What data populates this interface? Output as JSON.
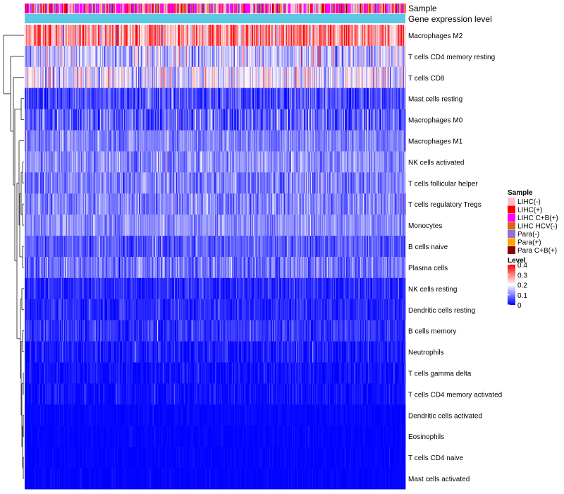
{
  "chart_data": {
    "type": "heatmap",
    "annotation_tracks": [
      "Sample",
      "Gene expression level"
    ],
    "rows": [
      "Macrophages M2",
      "T cells CD4 memory resting",
      "T cells CD8",
      "Mast cells resting",
      "Macrophages M0",
      "Macrophages M1",
      "NK cells activated",
      "T cells follicular helper",
      "T cells regulatory  Tregs",
      "Monocytes",
      "B cells naive",
      "Plasma cells",
      "NK cells resting",
      "Dendritic cells resting",
      "B cells memory",
      "Neutrophils",
      "T cells gamma delta",
      "T cells CD4 memory activated",
      "Dendritic cells activated",
      "Eosinophils",
      "T cells CD4 naive",
      "Mast cells activated"
    ],
    "row_mean_level": [
      0.28,
      0.15,
      0.18,
      0.06,
      0.07,
      0.1,
      0.11,
      0.1,
      0.1,
      0.11,
      0.07,
      0.09,
      0.03,
      0.03,
      0.04,
      0.02,
      0.01,
      0.01,
      0.005,
      0.003,
      0.002,
      0.002
    ],
    "row_variability": [
      0.12,
      0.09,
      0.1,
      0.06,
      0.08,
      0.05,
      0.06,
      0.06,
      0.06,
      0.05,
      0.05,
      0.06,
      0.04,
      0.04,
      0.04,
      0.04,
      0.03,
      0.03,
      0.01,
      0.01,
      0.01,
      0.01
    ],
    "columns": 520,
    "legend": {
      "sample": {
        "title": "Sample",
        "entries": [
          {
            "label": "LIHC(-)",
            "color": "#ffc0cb"
          },
          {
            "label": "LIHC(+)",
            "color": "#ff0000"
          },
          {
            "label": "LIHC C+B(+)",
            "color": "#ff00ff"
          },
          {
            "label": "LIHC HCV(-)",
            "color": "#d2691e"
          },
          {
            "label": "Para(-)",
            "color": "#9370db"
          },
          {
            "label": "Para(+)",
            "color": "#ffa500"
          },
          {
            "label": "Para C+B(+)",
            "color": "#8b0000"
          }
        ]
      },
      "level": {
        "title": "Level",
        "ticks": [
          "0.4",
          "0.3",
          "0.2",
          "0.1",
          "0"
        ],
        "range": [
          0,
          0.4
        ],
        "colors": [
          "#0000ff",
          "#ffffff",
          "#ff0000"
        ]
      }
    },
    "gene_expression_color": "#5bc8e6",
    "dendrogram_position": "left",
    "legend_position": "right"
  }
}
